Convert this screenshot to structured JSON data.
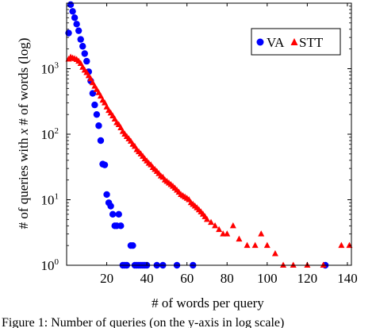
{
  "caption": "Figure 1: Number of queries (on the y-axis in log scale)",
  "chart_data": {
    "type": "scatter",
    "xlabel": "# of words per query",
    "ylabel": "# of queries with x # of words (log)",
    "ylabel_parts": {
      "before": "# of queries with ",
      "variable": "x",
      "after": " # of words (log)"
    },
    "xlim": [
      0,
      142
    ],
    "ylim": [
      1,
      10000
    ],
    "yscale": "log",
    "x_ticks": [
      20,
      40,
      60,
      80,
      100,
      120,
      140
    ],
    "x_tick_labels": [
      "20",
      "40",
      "60",
      "80",
      "100",
      "120",
      "140"
    ],
    "y_ticks": [
      1,
      10,
      100,
      1000
    ],
    "y_tick_labels": [
      {
        "base": "10",
        "exp": "0"
      },
      {
        "base": "10",
        "exp": "1"
      },
      {
        "base": "10",
        "exp": "2"
      },
      {
        "base": "10",
        "exp": "3"
      }
    ],
    "legend_position": "top-right",
    "series": [
      {
        "name": "VA",
        "color": "#0000ff",
        "marker": "circle",
        "x": [
          1,
          2,
          3,
          4,
          5,
          6,
          7,
          8,
          9,
          10,
          11,
          12,
          13,
          14,
          15,
          16,
          17,
          18,
          19,
          20,
          21,
          22,
          23,
          24,
          25,
          26,
          27,
          28,
          29,
          30,
          32,
          33,
          34,
          35,
          36,
          37,
          38,
          39,
          40,
          45,
          48,
          55,
          63,
          129
        ],
        "y": [
          3500,
          9500,
          7500,
          6000,
          4800,
          3800,
          2800,
          2200,
          1700,
          1300,
          900,
          650,
          420,
          280,
          200,
          135,
          80,
          35,
          34,
          12,
          9,
          8,
          6,
          4,
          4,
          6,
          4,
          1,
          1,
          1,
          2,
          2,
          1,
          1,
          1,
          1,
          1,
          1,
          1,
          1,
          1,
          1,
          1,
          1
        ]
      },
      {
        "name": "STT",
        "color": "#ff0000",
        "marker": "triangle",
        "x": [
          1,
          2,
          3,
          4,
          5,
          6,
          7,
          8,
          9,
          10,
          11,
          12,
          13,
          14,
          15,
          16,
          17,
          18,
          19,
          20,
          21,
          22,
          23,
          24,
          25,
          26,
          27,
          28,
          29,
          30,
          31,
          32,
          33,
          34,
          35,
          36,
          37,
          38,
          39,
          40,
          41,
          42,
          43,
          44,
          45,
          46,
          47,
          48,
          49,
          50,
          51,
          52,
          53,
          54,
          55,
          56,
          57,
          58,
          59,
          60,
          61,
          62,
          63,
          64,
          65,
          66,
          67,
          68,
          69,
          70,
          72,
          74,
          76,
          78,
          80,
          83,
          86,
          90,
          94,
          97,
          100,
          104,
          108,
          113,
          120,
          128,
          137,
          141
        ],
        "y": [
          1400,
          1500,
          1450,
          1420,
          1380,
          1300,
          1200,
          1050,
          950,
          870,
          780,
          700,
          610,
          540,
          480,
          430,
          380,
          330,
          300,
          260,
          230,
          210,
          190,
          170,
          150,
          140,
          125,
          110,
          100,
          92,
          85,
          78,
          70,
          65,
          58,
          54,
          50,
          46,
          42,
          39,
          36,
          34,
          31,
          29,
          27,
          25,
          23,
          22,
          20,
          19,
          18,
          17,
          16,
          15,
          14,
          13,
          12,
          11.5,
          11,
          10.5,
          10,
          9,
          8.5,
          8,
          7.5,
          7,
          6.5,
          6,
          5.5,
          5,
          4.5,
          4,
          3.5,
          3,
          3,
          4,
          2.5,
          2,
          2,
          3,
          2,
          1.5,
          1,
          1,
          1,
          1,
          2,
          2
        ]
      }
    ]
  }
}
